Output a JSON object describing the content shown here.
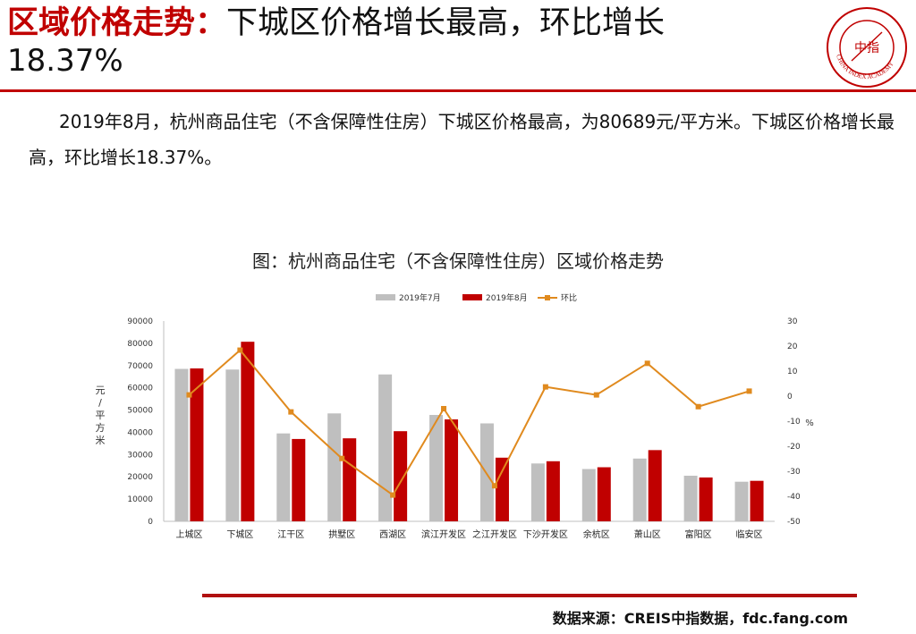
{
  "header": {
    "title_red": "区域价格走势：",
    "title_black": "下城区价格增长最高，环比增长",
    "title_line2": "18.37%",
    "logo_text": "中指",
    "logo_ring_text": "CHINA INDEX ACADEMY"
  },
  "body": {
    "paragraph": "2019年8月，杭州商品住宅（不含保障性住房）下城区价格最高，为80689元/平方米。下城区价格增长最高，环比增长18.37%。"
  },
  "footer": {
    "source": "数据来源：CREIS中指数据，fdc.fang.com"
  },
  "colors": {
    "accent": "#c00000",
    "bar_jul": "#bfbfbf",
    "bar_aug": "#c00000",
    "line": "#e08a1e"
  },
  "chart_data": {
    "type": "bar",
    "title": "图：杭州商品住宅（不含保障性住房）区域价格走势",
    "categories": [
      "上城区",
      "下城区",
      "江干区",
      "拱墅区",
      "西湖区",
      "滨江开发区",
      "之江开发区",
      "下沙开发区",
      "余杭区",
      "萧山区",
      "富阳区",
      "临安区"
    ],
    "series": [
      {
        "name": "2019年7月",
        "type": "bar",
        "axis": "left",
        "values": [
          68500,
          68200,
          39500,
          48500,
          66000,
          47800,
          44000,
          26000,
          23500,
          28200,
          20500,
          17800
        ]
      },
      {
        "name": "2019年8月",
        "type": "bar",
        "axis": "left",
        "values": [
          68700,
          80689,
          37000,
          37300,
          40500,
          45800,
          28600,
          27000,
          24300,
          32000,
          19700,
          18200
        ]
      },
      {
        "name": "环比",
        "type": "line",
        "axis": "right",
        "values": [
          0.5,
          18.37,
          -6.3,
          -24.9,
          -39.5,
          -5.0,
          -35.8,
          3.7,
          0.5,
          13.1,
          -4.2,
          2.0
        ]
      }
    ],
    "ylabel": "元/平方米",
    "y2label": "%",
    "ylim": [
      0,
      90000
    ],
    "y2lim": [
      -50,
      30
    ],
    "yticks": [
      "0",
      "10000",
      "20000",
      "30000",
      "40000",
      "50000",
      "60000",
      "70000",
      "80000",
      "90000"
    ],
    "y2ticks": [
      "-50",
      "-40",
      "-30",
      "-20",
      "-10",
      "0",
      "10",
      "20",
      "30"
    ],
    "legend": "top-center",
    "grid": false
  }
}
